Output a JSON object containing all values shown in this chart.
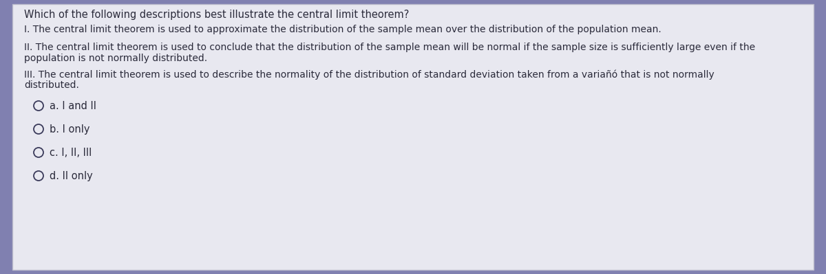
{
  "background_color": "#8080b0",
  "content_bg_color": "#e8e8f0",
  "text_color": "#2a2a3a",
  "title": "Which of the following descriptions best illustrate the central limit theorem?",
  "statement_I": "I. The central limit theorem is used to approximate the distribution of the sample mean over the distribution of the population mean.",
  "statement_II_line1": "II. The central limit theorem is used to conclude that the distribution of the sample mean will be normal if the sample size is sufficiently large even if the",
  "statement_II_line2": "population is not normally distributed.",
  "statement_III_line1": "III. The central limit theorem is used to describe the normality of the distribution of standard deviation taken from a variañó that is not normally",
  "statement_III_line2": "distributed.",
  "option_a": "a. I and II",
  "option_b": "b. I only",
  "option_c": "c. I, II, III",
  "option_d": "d. II only",
  "font_size_title": 10.5,
  "font_size_body": 10.0,
  "font_size_options": 10.5,
  "circle_color": "#3a3a5a"
}
